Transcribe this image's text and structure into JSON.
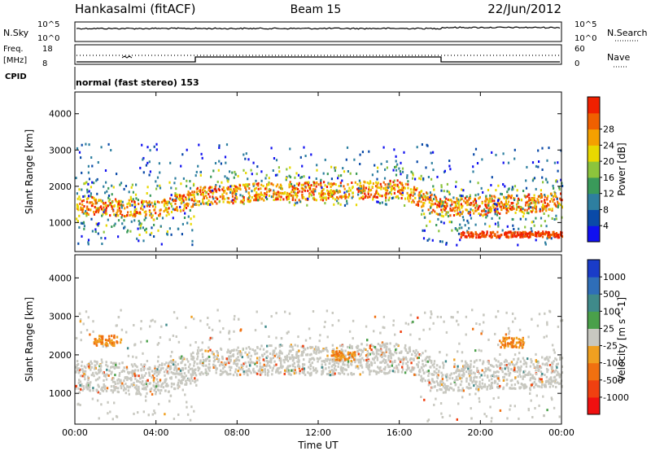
{
  "header": {
    "station": "Hankasalmi (fitACF)",
    "beam": "Beam 15",
    "date": "22/Jun/2012"
  },
  "strips": {
    "nsky_label": "N.Sky",
    "nsky_top": "10^5",
    "nsky_bottom": "10^0",
    "nsearch_top": "10^5",
    "nsearch_bottom": "10^0",
    "nsearch_label": "N.Search",
    "freq_label_1": "Freq.",
    "freq_label_2": "[MHz]",
    "freq_top": "18",
    "freq_bottom": "8",
    "nave_top": "60",
    "nave_bottom": "0",
    "nave_label": "Nave",
    "cpid_label": "CPID",
    "cpid_value": "normal (fast stereo) 153"
  },
  "chart_data": [
    {
      "type": "heatmap",
      "quantity": "Power",
      "ylabel": "Slant Range [km]",
      "colorbar_label": "Power [dB]",
      "x_ticks": [
        "00:00",
        "04:00",
        "08:00",
        "12:00",
        "16:00",
        "20:00",
        "00:00"
      ],
      "y_ticks": [
        1000,
        2000,
        3000,
        4000
      ],
      "ylim": [
        200,
        4600
      ],
      "colorbar_ticks": [
        "4",
        "8",
        "12",
        "16",
        "20",
        "24",
        "28"
      ],
      "colorbar_colors": [
        "#1010f0",
        "#0a4aa8",
        "#2e7fa0",
        "#3a9a5a",
        "#8cc43c",
        "#e8d800",
        "#f4a000",
        "#f06000",
        "#f02000"
      ],
      "echo_band_km": [
        {
          "hour": 0,
          "range": 1500
        },
        {
          "hour": 2,
          "range": 1450
        },
        {
          "hour": 4,
          "range": 1350
        },
        {
          "hour": 6,
          "range": 1750
        },
        {
          "hour": 10,
          "range": 1900
        },
        {
          "hour": 13,
          "range": 1900
        },
        {
          "hour": 16,
          "range": 1950
        },
        {
          "hour": 18,
          "range": 1450
        },
        {
          "hour": 22,
          "range": 1550
        },
        {
          "hour": 24,
          "range": 1600
        }
      ]
    },
    {
      "type": "heatmap",
      "quantity": "Velocity",
      "ylabel": "Slant Range [km]",
      "xlabel": "Time UT",
      "colorbar_label": "Velocity [m s^-1]",
      "x_ticks": [
        "00:00",
        "04:00",
        "08:00",
        "12:00",
        "16:00",
        "20:00",
        "00:00"
      ],
      "y_ticks": [
        1000,
        2000,
        3000,
        4000
      ],
      "ylim": [
        200,
        4600
      ],
      "colorbar_ticks": [
        "1000",
        "500",
        "100",
        "25",
        "-25",
        "-100",
        "-500",
        "-1000"
      ],
      "colorbar_colors": [
        "#1a3cc8",
        "#2f6eb8",
        "#3f8a8a",
        "#4aa04a",
        "#c8c8c0",
        "#f0a020",
        "#f07010",
        "#f04010",
        "#f01010"
      ]
    }
  ]
}
